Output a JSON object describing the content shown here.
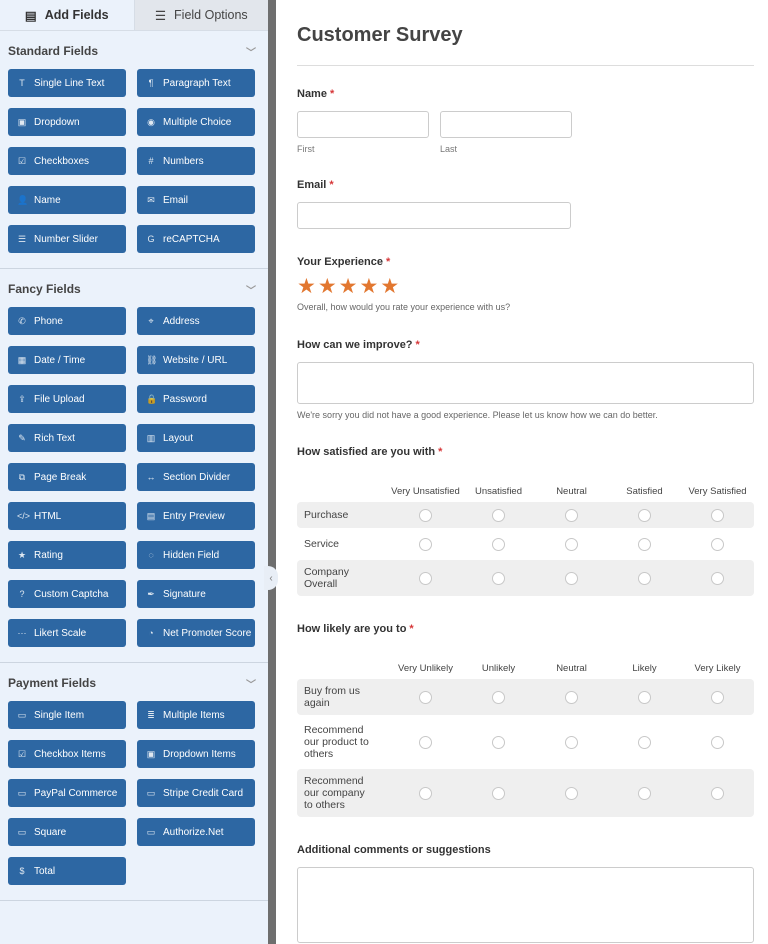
{
  "tabs": {
    "add_fields": "Add Fields",
    "field_options": "Field Options"
  },
  "sections": [
    {
      "title": "Standard Fields",
      "buttons": [
        {
          "label": "Single Line Text",
          "icon": "T"
        },
        {
          "label": "Paragraph Text",
          "icon": "¶"
        },
        {
          "label": "Dropdown",
          "icon": "▣"
        },
        {
          "label": "Multiple Choice",
          "icon": "◉"
        },
        {
          "label": "Checkboxes",
          "icon": "☑"
        },
        {
          "label": "Numbers",
          "icon": "#"
        },
        {
          "label": "Name",
          "icon": "👤"
        },
        {
          "label": "Email",
          "icon": "✉"
        },
        {
          "label": "Number Slider",
          "icon": "☰"
        },
        {
          "label": "reCAPTCHA",
          "icon": "G"
        }
      ]
    },
    {
      "title": "Fancy Fields",
      "buttons": [
        {
          "label": "Phone",
          "icon": "✆"
        },
        {
          "label": "Address",
          "icon": "⌖"
        },
        {
          "label": "Date / Time",
          "icon": "▦"
        },
        {
          "label": "Website / URL",
          "icon": "⛓"
        },
        {
          "label": "File Upload",
          "icon": "⇪"
        },
        {
          "label": "Password",
          "icon": "🔒"
        },
        {
          "label": "Rich Text",
          "icon": "✎"
        },
        {
          "label": "Layout",
          "icon": "▥"
        },
        {
          "label": "Page Break",
          "icon": "⧉"
        },
        {
          "label": "Section Divider",
          "icon": "↔"
        },
        {
          "label": "HTML",
          "icon": "</>"
        },
        {
          "label": "Entry Preview",
          "icon": "▤"
        },
        {
          "label": "Rating",
          "icon": "★"
        },
        {
          "label": "Hidden Field",
          "icon": "◌"
        },
        {
          "label": "Custom Captcha",
          "icon": "?"
        },
        {
          "label": "Signature",
          "icon": "✒"
        },
        {
          "label": "Likert Scale",
          "icon": "···"
        },
        {
          "label": "Net Promoter Score",
          "icon": "◔"
        }
      ]
    },
    {
      "title": "Payment Fields",
      "buttons": [
        {
          "label": "Single Item",
          "icon": "▭"
        },
        {
          "label": "Multiple Items",
          "icon": "≣"
        },
        {
          "label": "Checkbox Items",
          "icon": "☑"
        },
        {
          "label": "Dropdown Items",
          "icon": "▣"
        },
        {
          "label": "PayPal Commerce",
          "icon": "▭"
        },
        {
          "label": "Stripe Credit Card",
          "icon": "▭"
        },
        {
          "label": "Square",
          "icon": "▭"
        },
        {
          "label": "Authorize.Net",
          "icon": "▭"
        },
        {
          "label": "Total",
          "icon": "$"
        }
      ]
    }
  ],
  "form": {
    "title": "Customer Survey",
    "name": {
      "label": "Name",
      "required": "*",
      "first": "First",
      "last": "Last"
    },
    "email": {
      "label": "Email",
      "required": "*"
    },
    "experience": {
      "label": "Your Experience",
      "required": "*",
      "rating": 5,
      "max": 5,
      "description": "Overall, how would you rate your experience with us?"
    },
    "improve": {
      "label": "How can we improve?",
      "required": "*",
      "description": "We're sorry you did not have a good experience. Please let us know how we can do better."
    },
    "satisfied": {
      "label": "How satisfied are you with",
      "required": "*",
      "columns": [
        "Very Unsatisfied",
        "Unsatisfied",
        "Neutral",
        "Satisfied",
        "Very Satisfied"
      ],
      "rows": [
        "Purchase",
        "Service",
        "Company Overall"
      ]
    },
    "likely": {
      "label": "How likely are you to",
      "required": "*",
      "columns": [
        "Very Unlikely",
        "Unlikely",
        "Neutral",
        "Likely",
        "Very Likely"
      ],
      "rows": [
        "Buy from us again",
        "Recommend our product to others",
        "Recommend our company to others"
      ]
    },
    "comments": {
      "label": "Additional comments or suggestions"
    }
  },
  "colors": {
    "button": "#2d67a3",
    "star": "#e27730",
    "required": "#d63638"
  }
}
